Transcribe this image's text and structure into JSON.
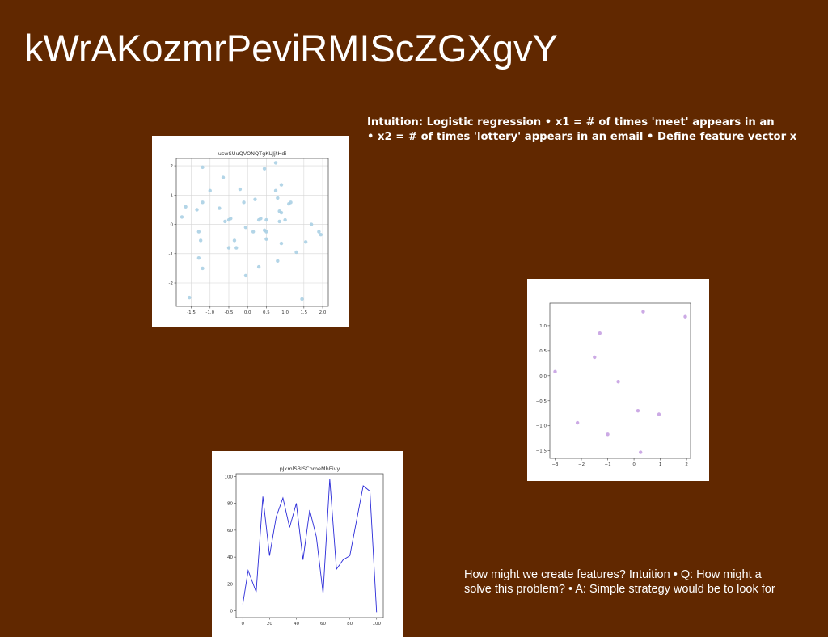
{
  "slide": {
    "title": "kWrAKozmrPeviRMIScZGXgvY",
    "text_block_1": {
      "line1": "Intuition: Logistic regression • x1 = # of times 'meet' appears in an",
      "line2": "• x2 = # of times 'lottery' appears in an email • Define feature vector x"
    },
    "text_block_2": {
      "line1": "How might we create features? Intuition • Q: How might a",
      "line2": "solve this problem? • A: Simple strategy would be to look for"
    }
  },
  "chart_data": [
    {
      "type": "scatter",
      "title": "uswSUuQVONQTgKUJjtHdi",
      "color": "#a6cee3",
      "grid": true,
      "xlim": [
        -1.9,
        2.15
      ],
      "ylim": [
        -2.8,
        2.25
      ],
      "xticks": [
        -1.5,
        -1.0,
        -0.5,
        0.0,
        0.5,
        1.0,
        1.5,
        2.0
      ],
      "xtick_labels": [
        "-1.5",
        "-1.0",
        "-0.5",
        "0.0",
        "0.5",
        "1.0",
        "1.5",
        "2.0"
      ],
      "yticks": [
        -2,
        -1,
        0,
        1,
        2
      ],
      "ytick_labels": [
        "-2",
        "-1",
        "0",
        "1",
        "2"
      ],
      "points": [
        [
          -1.2,
          1.95
        ],
        [
          0.75,
          2.1
        ],
        [
          0.45,
          1.9
        ],
        [
          -0.65,
          1.6
        ],
        [
          0.9,
          1.35
        ],
        [
          0.75,
          1.15
        ],
        [
          -1.0,
          1.15
        ],
        [
          -0.2,
          1.2
        ],
        [
          -0.75,
          0.55
        ],
        [
          -1.65,
          0.6
        ],
        [
          -1.35,
          0.5
        ],
        [
          -1.75,
          0.25
        ],
        [
          -1.2,
          0.75
        ],
        [
          -0.45,
          0.2
        ],
        [
          -0.5,
          0.15
        ],
        [
          -0.6,
          0.1
        ],
        [
          -0.1,
          0.75
        ],
        [
          0.2,
          0.85
        ],
        [
          0.3,
          0.15
        ],
        [
          0.35,
          0.2
        ],
        [
          0.5,
          0.15
        ],
        [
          0.8,
          0.9
        ],
        [
          0.85,
          0.45
        ],
        [
          0.9,
          0.4
        ],
        [
          1.0,
          0.15
        ],
        [
          1.1,
          0.7
        ],
        [
          1.15,
          0.75
        ],
        [
          1.7,
          0.0
        ],
        [
          1.9,
          -0.25
        ],
        [
          1.95,
          -0.35
        ],
        [
          -0.05,
          -0.1
        ],
        [
          0.15,
          -0.25
        ],
        [
          0.45,
          -0.2
        ],
        [
          0.5,
          -0.25
        ],
        [
          0.5,
          -0.5
        ],
        [
          0.85,
          0.1
        ],
        [
          -1.3,
          -0.25
        ],
        [
          -1.25,
          -0.55
        ],
        [
          -0.35,
          -0.55
        ],
        [
          -0.3,
          -0.8
        ],
        [
          -0.5,
          -0.8
        ],
        [
          0.9,
          -0.65
        ],
        [
          1.3,
          -0.95
        ],
        [
          1.55,
          -0.6
        ],
        [
          -1.3,
          -1.15
        ],
        [
          -1.2,
          -1.5
        ],
        [
          0.3,
          -1.45
        ],
        [
          0.8,
          -1.25
        ],
        [
          -0.05,
          -1.75
        ],
        [
          -1.55,
          -2.5
        ],
        [
          1.45,
          -2.55
        ]
      ]
    },
    {
      "type": "scatter",
      "title": "",
      "color": "#c39be0",
      "grid": false,
      "xlim": [
        -3.2,
        2.15
      ],
      "ylim": [
        -1.65,
        1.45
      ],
      "xticks": [
        -3,
        -2,
        -1,
        0,
        1,
        2
      ],
      "xtick_labels": [
        "−3",
        "−2",
        "−1",
        "0",
        "1",
        "2"
      ],
      "yticks": [
        -1.5,
        -1.0,
        -0.5,
        0.0,
        0.5,
        1.0
      ],
      "ytick_labels": [
        "−1.5",
        "−1.0",
        "−0.5",
        "0.0",
        "0.5",
        "1.0"
      ],
      "points": [
        [
          0.35,
          1.28
        ],
        [
          1.95,
          1.18
        ],
        [
          -1.3,
          0.85
        ],
        [
          -1.5,
          0.37
        ],
        [
          -3.0,
          0.08
        ],
        [
          -0.6,
          -0.12
        ],
        [
          0.15,
          -0.7
        ],
        [
          0.95,
          -0.77
        ],
        [
          -2.15,
          -0.94
        ],
        [
          -1.0,
          -1.17
        ],
        [
          0.25,
          -1.53
        ]
      ]
    },
    {
      "type": "line",
      "title": "pJkmlSBISComeMhEivy",
      "color": "#2a2ad8",
      "grid": false,
      "xlim": [
        -5,
        105
      ],
      "ylim": [
        -5,
        102
      ],
      "xticks": [
        0,
        20,
        40,
        60,
        80,
        100
      ],
      "xtick_labels": [
        "0",
        "20",
        "40",
        "60",
        "80",
        "100"
      ],
      "yticks": [
        0,
        20,
        40,
        60,
        80,
        100
      ],
      "ytick_labels": [
        "0",
        "20",
        "40",
        "60",
        "80",
        "100"
      ],
      "x": [
        0,
        4,
        10,
        15,
        20,
        25,
        30,
        35,
        40,
        45,
        50,
        55,
        60,
        65,
        70,
        75,
        80,
        90,
        95,
        100
      ],
      "y": [
        5,
        30,
        14,
        85,
        41,
        70,
        84,
        62,
        80,
        38,
        75,
        55,
        13,
        98,
        31,
        38,
        41,
        93,
        89,
        -1
      ]
    }
  ]
}
